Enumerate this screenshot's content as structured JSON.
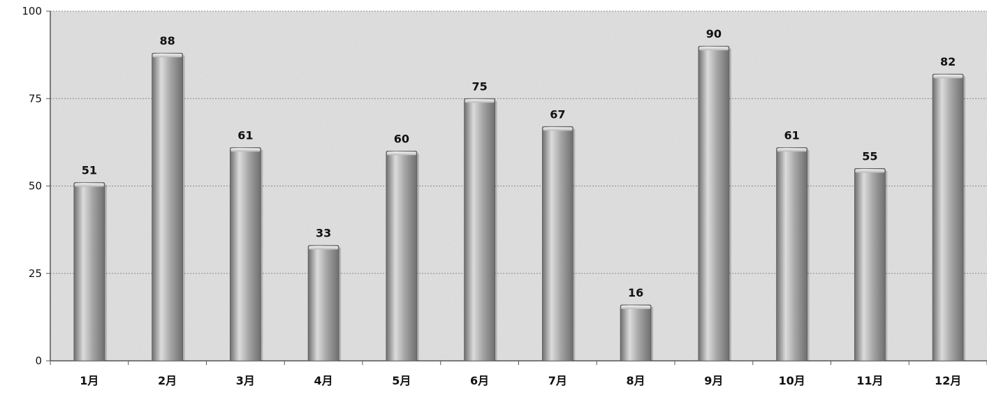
{
  "chart_data": {
    "type": "bar",
    "categories": [
      "1月",
      "2月",
      "3月",
      "4月",
      "5月",
      "6月",
      "7月",
      "8月",
      "9月",
      "10月",
      "11月",
      "12月"
    ],
    "values": [
      51,
      88,
      61,
      33,
      60,
      75,
      67,
      16,
      90,
      61,
      55,
      82
    ],
    "title": "",
    "xlabel": "",
    "ylabel": "",
    "ylim": [
      0,
      100
    ],
    "yticks": [
      0,
      25,
      50,
      75,
      100
    ],
    "grid": true,
    "legend": "none",
    "data_labels": true,
    "colors": {
      "bar_light": "#dcdcdc",
      "bar_mid": "#a6a6a6",
      "bar_dark": "#6e6e6e",
      "plot_bg": "#e4e4e4",
      "gridline": "#8a8a8a",
      "axis": "#555555"
    }
  }
}
